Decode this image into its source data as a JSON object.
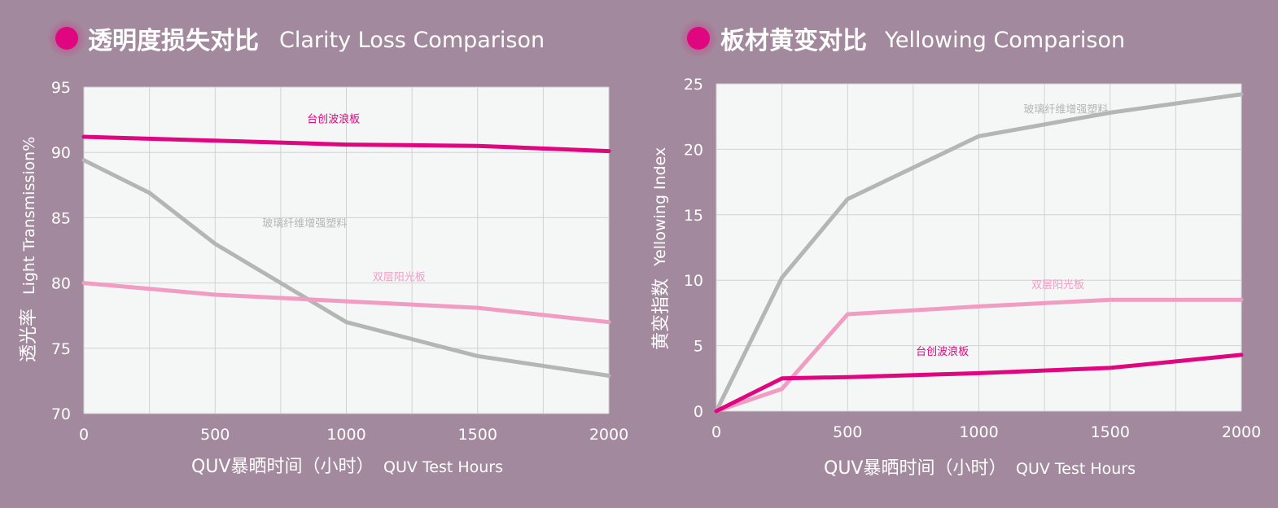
{
  "colors": {
    "background": "#a3899d",
    "plot_bg": "#f5f7f7",
    "grid": "#cfd3d3",
    "magenta": "#e0067f",
    "pink": "#f19cc3",
    "gray": "#b5b5b5"
  },
  "chart_data": [
    {
      "type": "line",
      "title_zh": "透明度损失对比",
      "title_en": "Clarity Loss Comparison",
      "title_icon": "magenta-dot-icon",
      "xlabel_zh": "QUV暴晒时间（小时）",
      "xlabel_en": "QUV Test Hours",
      "ylabel_zh": "透光率",
      "ylabel_en": "Light Transmission%",
      "xlim": [
        0,
        2000
      ],
      "ylim": [
        70,
        95
      ],
      "x_ticks": [
        0,
        500,
        1000,
        1500,
        2000
      ],
      "x_grid_step": 250,
      "y_ticks": [
        70,
        75,
        80,
        85,
        90,
        95
      ],
      "grid": true,
      "series": [
        {
          "name": "台创波浪板",
          "color": "#e0067f",
          "points": [
            [
              0,
              91.2
            ],
            [
              500,
              90.9
            ],
            [
              1000,
              90.6
            ],
            [
              1500,
              90.5
            ],
            [
              2000,
              90.1
            ]
          ],
          "label_at": [
            850,
            92.3
          ]
        },
        {
          "name": "玻璃纤维增强塑料",
          "color": "#b5b5b5",
          "points": [
            [
              0,
              89.4
            ],
            [
              250,
              86.9
            ],
            [
              500,
              83.0
            ],
            [
              1000,
              77.0
            ],
            [
              1500,
              74.4
            ],
            [
              2000,
              72.9
            ]
          ],
          "label_at": [
            680,
            84.3
          ]
        },
        {
          "name": "双层阳光板",
          "color": "#f19cc3",
          "points": [
            [
              0,
              80.0
            ],
            [
              500,
              79.1
            ],
            [
              1000,
              78.6
            ],
            [
              1500,
              78.1
            ],
            [
              2000,
              77.0
            ]
          ],
          "label_at": [
            1100,
            80.2
          ]
        }
      ]
    },
    {
      "type": "line",
      "title_zh": "板材黄变对比",
      "title_en": "Yellowing Comparison",
      "title_icon": "magenta-dot-icon",
      "xlabel_zh": "QUV暴晒时间（小时）",
      "xlabel_en": "QUV Test Hours",
      "ylabel_zh": "黄变指数",
      "ylabel_en": "Yellowing Index",
      "xlim": [
        0,
        2000
      ],
      "ylim": [
        0,
        25
      ],
      "x_ticks": [
        0,
        500,
        1000,
        1500,
        2000
      ],
      "x_grid_step": 250,
      "y_ticks": [
        0,
        5,
        10,
        15,
        20,
        25
      ],
      "grid": true,
      "series": [
        {
          "name": "玻璃纤维增强塑料",
          "color": "#b5b5b5",
          "points": [
            [
              0,
              0
            ],
            [
              250,
              10.2
            ],
            [
              500,
              16.2
            ],
            [
              1000,
              21.0
            ],
            [
              1500,
              22.8
            ],
            [
              2000,
              24.2
            ]
          ],
          "label_at": [
            1170,
            22.8
          ]
        },
        {
          "name": "双层阳光板",
          "color": "#f19cc3",
          "points": [
            [
              0,
              0
            ],
            [
              250,
              1.7
            ],
            [
              500,
              7.4
            ],
            [
              1000,
              8.0
            ],
            [
              1500,
              8.5
            ],
            [
              2000,
              8.5
            ]
          ],
          "label_at": [
            1200,
            9.4
          ]
        },
        {
          "name": "台创波浪板",
          "color": "#e0067f",
          "points": [
            [
              0,
              0
            ],
            [
              250,
              2.5
            ],
            [
              500,
              2.6
            ],
            [
              1000,
              2.9
            ],
            [
              1500,
              3.3
            ],
            [
              2000,
              4.3
            ]
          ],
          "label_at": [
            760,
            4.3
          ]
        }
      ]
    }
  ]
}
